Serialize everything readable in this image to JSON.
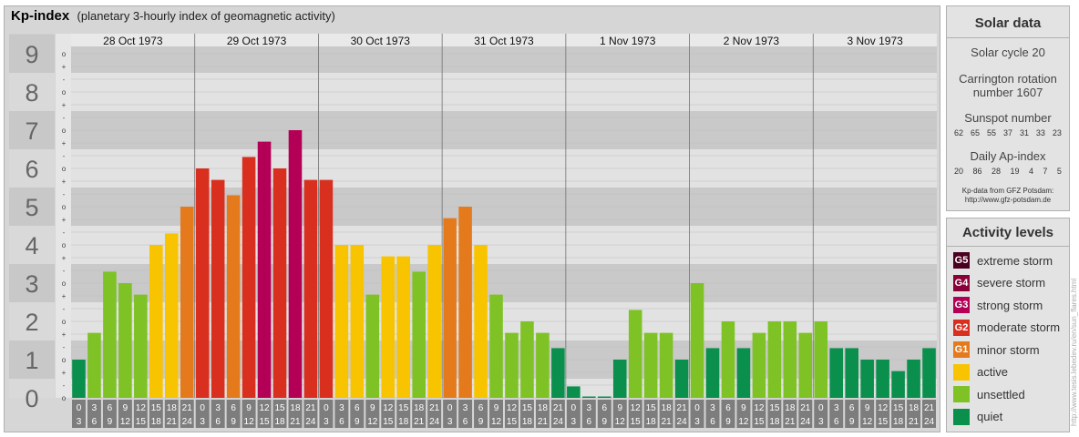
{
  "title": {
    "main": "Kp-index",
    "sub": "(planetary 3-hourly index of geomagnetic activity)"
  },
  "chart_data": {
    "type": "bar",
    "title": "Kp-index",
    "subtitle": "(planetary 3-hourly index of geomagnetic activity)",
    "ylim": [
      0,
      9
    ],
    "y_ticks": [
      "0",
      "1",
      "2",
      "3",
      "4",
      "5",
      "6",
      "7",
      "8",
      "9"
    ],
    "y_subticks": [
      "o",
      "-",
      "+",
      "o",
      "-",
      "+",
      "o",
      "-",
      "+",
      "o",
      "-",
      "+",
      "o",
      "-",
      "+",
      "o",
      "-",
      "+",
      "o",
      "-",
      "+",
      "o",
      "-",
      "+",
      "o",
      "-",
      "+",
      "o"
    ],
    "days": [
      "28 Oct 1973",
      "29 Oct 1973",
      "30 Oct 1973",
      "31 Oct 1973",
      "1 Nov 1973",
      "2 Nov 1973",
      "3 Nov 1973"
    ],
    "interval_starts": [
      "0",
      "3",
      "6",
      "9",
      "12",
      "15",
      "18",
      "21"
    ],
    "interval_ends": [
      "3",
      "6",
      "9",
      "12",
      "15",
      "18",
      "21",
      "24"
    ],
    "values": [
      [
        1.0,
        1.7,
        3.3,
        3.0,
        2.7,
        4.0,
        4.3,
        5.0
      ],
      [
        6.0,
        5.7,
        5.3,
        6.3,
        6.7,
        6.0,
        7.0,
        5.7
      ],
      [
        5.7,
        4.0,
        4.0,
        2.7,
        3.7,
        3.7,
        3.3,
        4.0
      ],
      [
        4.7,
        5.0,
        4.0,
        2.7,
        1.7,
        2.0,
        1.7,
        1.3
      ],
      [
        0.3,
        0.0,
        0.0,
        1.0,
        2.3,
        1.7,
        1.7,
        1.0
      ],
      [
        3.0,
        1.3,
        2.0,
        1.3,
        1.7,
        2.0,
        2.0,
        1.7
      ],
      [
        2.0,
        1.3,
        1.3,
        1.0,
        1.0,
        0.7,
        1.0,
        1.3
      ]
    ],
    "level_colors": {
      "quiet": "#0a8f4c",
      "unsettled": "#7fc225",
      "active": "#f8c400",
      "minor": "#e57a1c",
      "moderate": "#d82f1f",
      "strong": "#b30056",
      "severe": "#8a0038",
      "extreme": "#4a0020"
    },
    "grid": true
  },
  "solar": {
    "title": "Solar data",
    "cycle": "Solar cycle 20",
    "carrington_line1": "Carrington rotation",
    "carrington_line2": "number 1607",
    "sunspot_label": "Sunspot number",
    "sunspot_values": [
      "62",
      "65",
      "55",
      "37",
      "31",
      "33",
      "23"
    ],
    "ap_label": "Daily Ap-index",
    "ap_values": [
      "20",
      "86",
      "28",
      "19",
      "4",
      "7",
      "5"
    ],
    "credit_line1": "Kp-data from GFZ Potsdam:",
    "credit_line2": "http://www.gfz-potsdam.de"
  },
  "levels": {
    "title": "Activity levels",
    "items": [
      {
        "badge": "G5",
        "label": "extreme storm",
        "color": "#4a0020"
      },
      {
        "badge": "G4",
        "label": "severe storm",
        "color": "#8a0038"
      },
      {
        "badge": "G3",
        "label": "strong storm",
        "color": "#b30056"
      },
      {
        "badge": "G2",
        "label": "moderate storm",
        "color": "#d82f1f"
      },
      {
        "badge": "G1",
        "label": "minor storm",
        "color": "#e57a1c"
      },
      {
        "badge": "",
        "label": "active",
        "color": "#f8c400"
      },
      {
        "badge": "",
        "label": "unsettled",
        "color": "#7fc225"
      },
      {
        "badge": "",
        "label": "quiet",
        "color": "#0a8f4c"
      }
    ]
  },
  "watermark": "http://www.tesis.lebedev.ru/en/sun_flares.html"
}
